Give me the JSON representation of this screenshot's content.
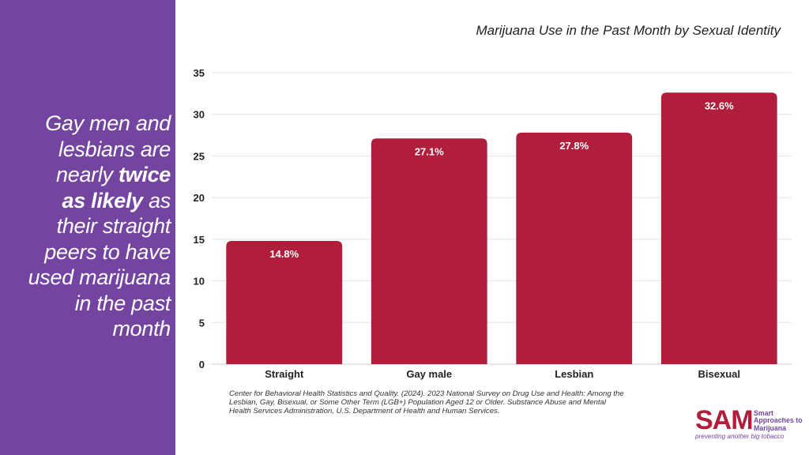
{
  "headline": {
    "line1": "Gay men and",
    "line2": "lesbians are",
    "line3_before": "nearly ",
    "line3_bold": "twice",
    "line4_bold": "as likely",
    "line4_after": " as",
    "line5": "their straight",
    "line6": "peers to have",
    "line7": "used marijuana",
    "line8": "in the past",
    "line9": "month"
  },
  "chart_data": {
    "type": "bar",
    "title": "Marijuana Use in the Past Month by Sexual Identity",
    "categories": [
      "Straight",
      "Gay male",
      "Lesbian",
      "Bisexual"
    ],
    "values": [
      14.8,
      27.1,
      27.8,
      32.6
    ],
    "data_labels": [
      "14.8%",
      "27.1%",
      "27.8%",
      "32.6%"
    ],
    "ylim": [
      0,
      35
    ],
    "yticks": [
      0,
      5,
      10,
      15,
      20,
      25,
      30,
      35
    ],
    "grid": true,
    "bar_color": "#b01e3c",
    "label_color": "#ffffff"
  },
  "source": "Center for Behavioral Health Statistics and Quality. (2024). 2023 National Survey on Drug Use and Health: Among the Lesbian, Gay, Bisexual, or Some Other Term (LGB+) Population Aged 12 or Older. Substance Abuse and Mental Health Services Administration, U.S. Department of Health and Human Services.",
  "logo": {
    "mark": "SAM",
    "line1": "Smart",
    "line2": "Approaches to",
    "line3": "Marijuana",
    "tagline": "preventing another big tobacco"
  },
  "colors": {
    "sidebar": "#7345a0",
    "bar": "#b01e3c",
    "logo_mark": "#b01e3c",
    "logo_text": "#7345a0"
  }
}
